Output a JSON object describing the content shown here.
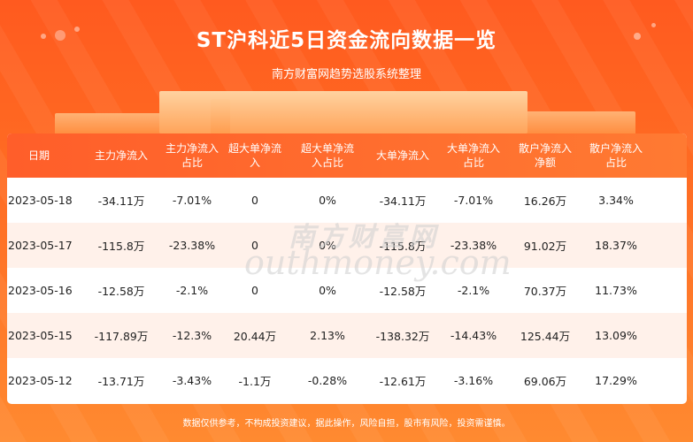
{
  "header": {
    "title": "ST沪科近5日资金流向数据一览",
    "subtitle": "南方财富网趋势选股系统整理"
  },
  "table": {
    "columns": [
      "日期",
      "主力净流入",
      "主力净流入\n占比",
      "超大单净流\n入",
      "超大单净流\n入占比",
      "大单净流入",
      "大单净流入\n占比",
      "散户净流入\n净额",
      "散户净流入\n占比"
    ],
    "rows": [
      [
        "2023-05-18",
        "-34.11万",
        "-7.01%",
        "0",
        "0%",
        "-34.11万",
        "-7.01%",
        "16.26万",
        "3.34%"
      ],
      [
        "2023-05-17",
        "-115.8万",
        "-23.38%",
        "0",
        "0%",
        "-115.8万",
        "-23.38%",
        "91.02万",
        "18.37%"
      ],
      [
        "2023-05-16",
        "-12.58万",
        "-2.1%",
        "0",
        "0%",
        "-12.58万",
        "-2.1%",
        "70.37万",
        "11.73%"
      ],
      [
        "2023-05-15",
        "-117.89万",
        "-12.3%",
        "20.44万",
        "2.13%",
        "-138.32万",
        "-14.43%",
        "125.44万",
        "13.09%"
      ],
      [
        "2023-05-12",
        "-13.71万",
        "-3.43%",
        "-1.1万",
        "-0.28%",
        "-12.61万",
        "-3.16%",
        "69.06万",
        "17.29%"
      ]
    ]
  },
  "watermark": {
    "chinese": "南方财富网",
    "english": "outhmoney.com"
  },
  "footer": {
    "disclaimer": "数据仅供参考，不构成投资建议，据此操作，风险自担，股市有风险，投资需谨慎。"
  },
  "colors": {
    "background": "#ff6a22",
    "header_row": "#ff5e2a",
    "alt_row": "#fff1ea"
  }
}
